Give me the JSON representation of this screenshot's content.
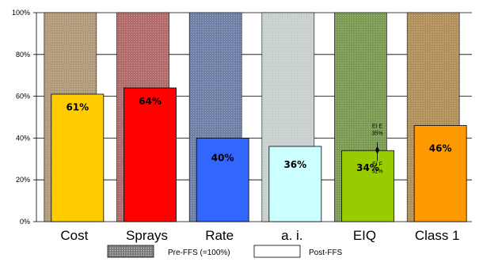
{
  "chart_data": {
    "type": "bar",
    "categories": [
      "Cost",
      "Sprays",
      "Rate",
      "a. i.",
      "EIQ",
      "Class 1"
    ],
    "y_ticks": [
      "0%",
      "20%",
      "40%",
      "60%",
      "80%",
      "100%"
    ],
    "ylim": [
      0,
      100
    ],
    "grid": true,
    "series": [
      {
        "name": "Pre-FFS (=100%)",
        "values": [
          100,
          100,
          100,
          100,
          100,
          100
        ],
        "colors": [
          "#b09a78",
          "#b06a6a",
          "#6e7fa6",
          "#c8d0cf",
          "#7a9a52",
          "#b08f5a"
        ]
      },
      {
        "name": "Post-FFS",
        "values": [
          61,
          64,
          40,
          36,
          34,
          46
        ],
        "labels": [
          "61%",
          "64%",
          "40%",
          "36%",
          "34%",
          "46%"
        ],
        "colors": [
          "#ffcc00",
          "#ff0000",
          "#3366ff",
          "#ccffff",
          "#99cc00",
          "#ff9900"
        ]
      }
    ],
    "annotations": [
      {
        "category": "EIQ",
        "lines": [
          "EI E",
          "35%"
        ],
        "value": 35
      },
      {
        "category": "EIQ",
        "lines": [
          "EI F",
          "32%"
        ],
        "value": 32
      }
    ],
    "legend_position": "bottom"
  }
}
